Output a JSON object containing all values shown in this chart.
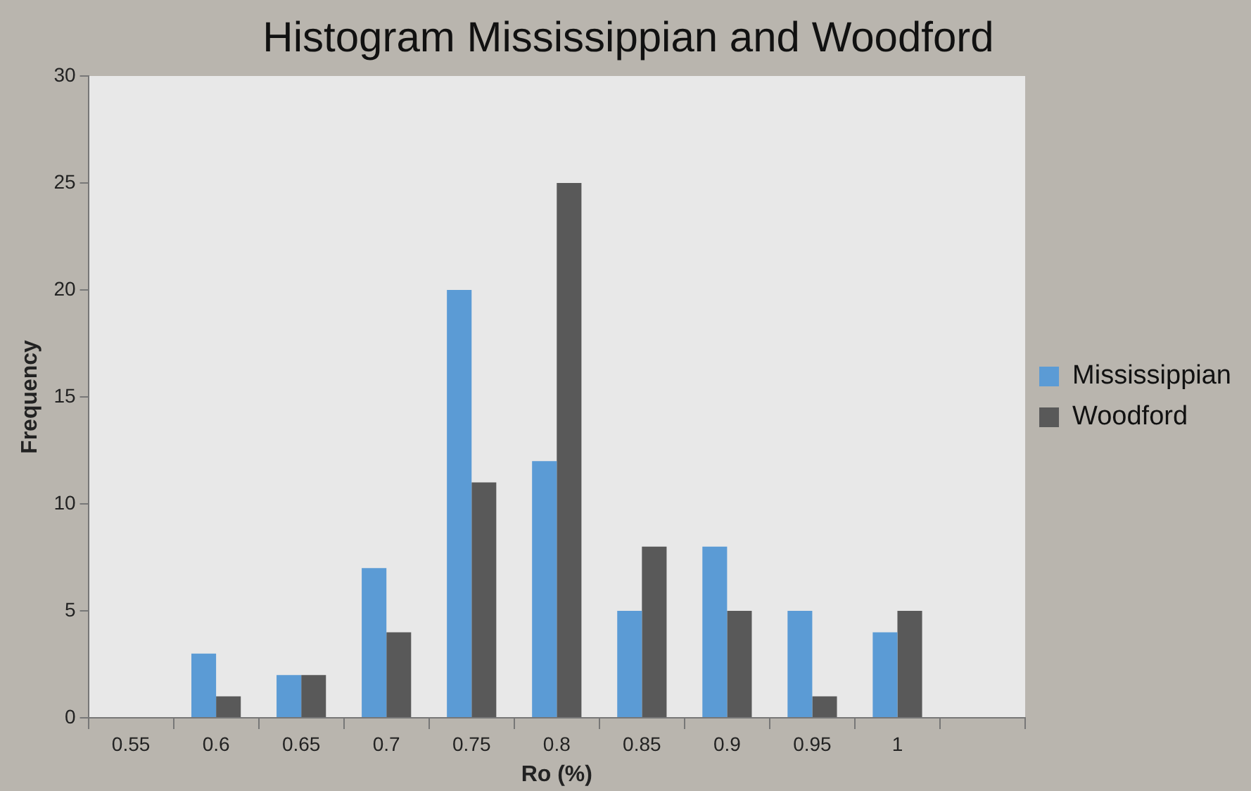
{
  "chart_data": {
    "type": "bar",
    "title": "Histogram Mississippian and Woodford",
    "xlabel": "Ro (%)",
    "ylabel": "Frequency",
    "categories": [
      "0.55",
      "0.6",
      "0.65",
      "0.7",
      "0.75",
      "0.8",
      "0.85",
      "0.9",
      "0.95",
      "1",
      null
    ],
    "series": [
      {
        "name": "Mississippian",
        "color": "#5b9bd5",
        "values": [
          0,
          3,
          2,
          7,
          20,
          12,
          5,
          8,
          5,
          4,
          0
        ]
      },
      {
        "name": "Woodford",
        "color": "#595959",
        "values": [
          0,
          1,
          2,
          4,
          11,
          25,
          8,
          5,
          1,
          5,
          0
        ]
      }
    ],
    "ylim": [
      0,
      30
    ],
    "yticks": [
      0,
      5,
      10,
      15,
      20,
      25,
      30
    ],
    "grid": false,
    "legend": "right"
  }
}
